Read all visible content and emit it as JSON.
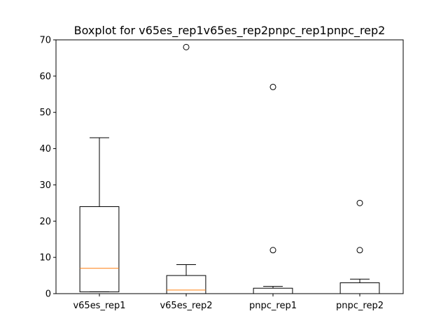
{
  "chart_data": {
    "type": "boxplot",
    "title": "Boxplot for v65es_rep1v65es_rep2pnpc_rep1pnpc_rep2",
    "xlabel": "",
    "ylabel": "",
    "ylim": [
      0,
      70
    ],
    "yticks": [
      0,
      10,
      20,
      30,
      40,
      50,
      60,
      70
    ],
    "grid": false,
    "box_color": "#000000",
    "median_color": "#ff7f0e",
    "categories": [
      "v65es_rep1",
      "v65es_rep2",
      "pnpc_rep1",
      "pnpc_rep2"
    ],
    "boxes": [
      {
        "name": "v65es_rep1",
        "whisker_low": 0.5,
        "q1": 0.5,
        "median": 7,
        "q3": 24,
        "whisker_high": 43,
        "outliers": []
      },
      {
        "name": "v65es_rep2",
        "whisker_low": 0,
        "q1": 0,
        "median": 1,
        "q3": 5,
        "whisker_high": 8,
        "outliers": [
          68
        ]
      },
      {
        "name": "pnpc_rep1",
        "whisker_low": 0,
        "q1": 0,
        "median": 0,
        "q3": 1.5,
        "whisker_high": 2,
        "outliers": [
          12,
          57
        ]
      },
      {
        "name": "pnpc_rep2",
        "whisker_low": 0,
        "q1": 0,
        "median": 0,
        "q3": 3,
        "whisker_high": 4,
        "outliers": [
          12,
          25
        ]
      }
    ]
  }
}
